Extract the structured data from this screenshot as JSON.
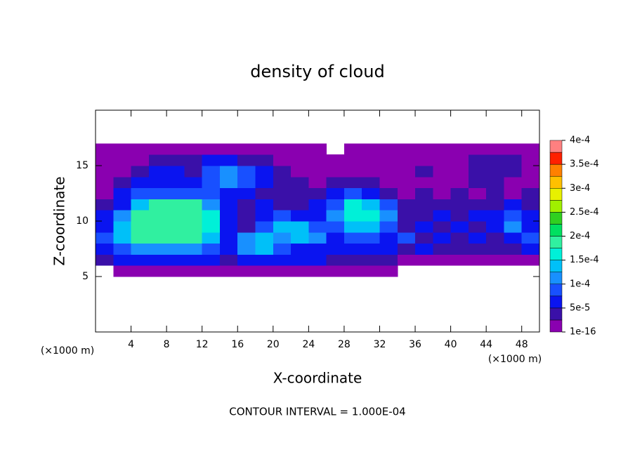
{
  "chart_data": {
    "type": "contour",
    "title": "density of cloud",
    "x_label": "X-coordinate",
    "y_label": "Z-coordinate",
    "y_unit": "(×1000 m)",
    "x_unit": "(×1000 m)",
    "footer": "CONTOUR INTERVAL = 1.000E-04",
    "xlim": [
      0,
      50
    ],
    "ylim": [
      0,
      20
    ],
    "xticks": [
      4,
      8,
      12,
      16,
      20,
      24,
      28,
      32,
      36,
      40,
      44,
      48
    ],
    "yticks": [
      5,
      10,
      15
    ],
    "clim": [
      1e-16,
      0.0004
    ],
    "colorbar_ticks": [
      1e-16,
      {
        "value": 5e-05,
        "label": "5e-5"
      },
      {
        "value": 0.0001,
        "label": "1e-4"
      },
      {
        "value": 0.00015,
        "label": "1.5e-4"
      },
      {
        "value": 0.0002,
        "label": "2e-4"
      },
      {
        "value": 0.00025,
        "label": "2.5e-4"
      },
      {
        "value": 0.0003,
        "label": "3e-4"
      },
      {
        "value": 0.00035,
        "label": "3.5e-4"
      },
      {
        "value": 0.0004,
        "label": "4e-4"
      }
    ],
    "colors": [
      "#8a00b0",
      "#3a10a8",
      "#0a14f0",
      "#1850ff",
      "#1890ff",
      "#00c0f8",
      "#00f0d8",
      "#30f0a0",
      "#00e060",
      "#30d020",
      "#a0f000",
      "#e8f000",
      "#ffc000",
      "#ff8000",
      "#ff2000",
      "#ff8080"
    ],
    "x": [
      1,
      3,
      5,
      7,
      9,
      11,
      13,
      15,
      17,
      19,
      21,
      23,
      25,
      27,
      29,
      31,
      33,
      35,
      37,
      39,
      41,
      43,
      45,
      47,
      49
    ],
    "y": [
      0.5,
      1.5,
      2.5,
      3.5,
      4.5,
      5.5,
      6.5,
      7.5,
      8.5,
      9.5,
      10.5,
      11.5,
      12.5,
      13.5,
      14.5,
      15.5,
      16.5,
      17.5,
      18.5,
      19.5
    ],
    "z": [
      [
        null,
        null,
        null,
        null,
        null,
        null,
        null,
        null,
        null,
        null,
        null,
        null,
        null,
        null,
        null,
        null,
        null,
        null,
        null,
        null,
        null,
        null,
        null,
        null,
        null
      ],
      [
        null,
        null,
        null,
        null,
        null,
        null,
        null,
        null,
        null,
        null,
        null,
        null,
        null,
        null,
        null,
        null,
        null,
        null,
        null,
        null,
        null,
        null,
        null,
        null,
        null
      ],
      [
        null,
        null,
        null,
        null,
        null,
        null,
        null,
        null,
        null,
        null,
        null,
        null,
        null,
        null,
        null,
        null,
        null,
        null,
        null,
        null,
        null,
        null,
        null,
        null,
        null
      ],
      [
        null,
        null,
        null,
        null,
        null,
        null,
        null,
        null,
        null,
        null,
        null,
        null,
        null,
        null,
        null,
        null,
        null,
        null,
        null,
        null,
        null,
        null,
        null,
        null,
        null
      ],
      [
        null,
        null,
        null,
        null,
        null,
        null,
        null,
        null,
        null,
        null,
        null,
        null,
        null,
        null,
        null,
        null,
        null,
        null,
        null,
        null,
        null,
        null,
        null,
        null,
        null
      ],
      [
        null,
        1e-05,
        1e-05,
        1e-05,
        1e-05,
        1e-05,
        1e-05,
        1e-05,
        1e-05,
        1e-05,
        1e-05,
        1e-05,
        1e-05,
        1e-05,
        1e-05,
        1e-05,
        1e-05,
        null,
        null,
        null,
        null,
        null,
        null,
        null,
        null
      ],
      [
        3e-05,
        6e-05,
        6e-05,
        6e-05,
        6e-05,
        6e-05,
        6e-05,
        4e-05,
        6e-05,
        6e-05,
        6e-05,
        6e-05,
        6e-05,
        4e-05,
        4e-05,
        4e-05,
        4e-05,
        2e-05,
        1e-05,
        1e-05,
        1e-05,
        1e-05,
        1e-05,
        1e-05,
        1e-05
      ],
      [
        6e-05,
        9e-05,
        0.00011,
        0.00011,
        0.00011,
        0.00011,
        9e-05,
        6e-05,
        0.00011,
        0.00013,
        9e-05,
        6e-05,
        6e-05,
        6e-05,
        6e-05,
        6e-05,
        6e-05,
        4e-05,
        6e-05,
        4e-05,
        4e-05,
        4e-05,
        4e-05,
        4e-05,
        6e-05
      ],
      [
        9e-05,
        0.00014,
        0.00018,
        0.00018,
        0.00018,
        0.00018,
        0.00014,
        6e-05,
        0.00011,
        0.00013,
        0.00011,
        0.00014,
        0.00011,
        6e-05,
        9e-05,
        9e-05,
        6e-05,
        9e-05,
        4e-05,
        6e-05,
        4e-05,
        6e-05,
        4e-05,
        6e-05,
        9e-05
      ],
      [
        6e-05,
        0.00014,
        0.00019,
        0.00019,
        0.00019,
        0.00019,
        0.00016,
        6e-05,
        4e-05,
        9e-05,
        0.00013,
        0.00014,
        9e-05,
        9e-05,
        0.00014,
        0.00014,
        9e-05,
        4e-05,
        6e-05,
        4e-05,
        6e-05,
        4e-05,
        6e-05,
        0.00011,
        6e-05
      ],
      [
        6e-05,
        0.00011,
        0.00018,
        0.00019,
        0.00019,
        0.00019,
        0.00016,
        6e-05,
        4e-05,
        6e-05,
        9e-05,
        6e-05,
        6e-05,
        0.00011,
        0.00016,
        0.00016,
        0.00011,
        4e-05,
        4e-05,
        6e-05,
        4e-05,
        6e-05,
        6e-05,
        9e-05,
        6e-05
      ],
      [
        4e-05,
        6e-05,
        0.00014,
        0.00018,
        0.00018,
        0.00018,
        0.00011,
        6e-05,
        4e-05,
        6e-05,
        4e-05,
        4e-05,
        6e-05,
        9e-05,
        0.00016,
        0.00014,
        9e-05,
        4e-05,
        4e-05,
        4e-05,
        4e-05,
        4e-05,
        4e-05,
        6e-05,
        4e-05
      ],
      [
        2e-05,
        6e-05,
        9e-05,
        9e-05,
        9e-05,
        9e-05,
        9e-05,
        6e-05,
        6e-05,
        4e-05,
        4e-05,
        4e-05,
        4e-05,
        6e-05,
        9e-05,
        6e-05,
        4e-05,
        2e-05,
        4e-05,
        2e-05,
        4e-05,
        2e-05,
        4e-05,
        2e-05,
        4e-05
      ],
      [
        2e-05,
        4e-05,
        6e-05,
        6e-05,
        6e-05,
        6e-05,
        9e-05,
        0.00011,
        9e-05,
        6e-05,
        4e-05,
        4e-05,
        2e-05,
        4e-05,
        4e-05,
        4e-05,
        2e-05,
        2e-05,
        2e-05,
        2e-05,
        2e-05,
        4e-05,
        4e-05,
        2e-05,
        2e-05
      ],
      [
        1e-05,
        2e-05,
        4e-05,
        6e-05,
        6e-05,
        4e-05,
        9e-05,
        0.00011,
        9e-05,
        6e-05,
        4e-05,
        2e-05,
        1e-05,
        2e-05,
        2e-05,
        2e-05,
        1e-05,
        2e-05,
        4e-05,
        2e-05,
        2e-05,
        4e-05,
        4e-05,
        4e-05,
        2e-05
      ],
      [
        1e-05,
        1e-05,
        2e-05,
        4e-05,
        4e-05,
        4e-05,
        6e-05,
        6e-05,
        4e-05,
        4e-05,
        2e-05,
        1e-05,
        1e-05,
        1e-05,
        1e-05,
        1e-05,
        1e-05,
        2e-05,
        2e-05,
        2e-05,
        2e-05,
        4e-05,
        4e-05,
        4e-05,
        2e-05
      ],
      [
        1e-05,
        1e-05,
        1e-05,
        1e-05,
        1e-05,
        1e-05,
        1e-05,
        1e-05,
        1e-05,
        1e-05,
        1e-05,
        1e-05,
        1e-05,
        null,
        1e-05,
        1e-05,
        1e-05,
        1e-05,
        1e-05,
        1e-05,
        1e-05,
        1e-05,
        1e-05,
        1e-05,
        1e-05
      ],
      [
        null,
        null,
        null,
        null,
        null,
        null,
        null,
        null,
        null,
        null,
        null,
        null,
        null,
        null,
        null,
        null,
        null,
        null,
        null,
        null,
        null,
        null,
        null,
        null,
        null
      ],
      [
        null,
        null,
        null,
        null,
        null,
        null,
        null,
        null,
        null,
        null,
        null,
        null,
        null,
        null,
        null,
        null,
        null,
        null,
        null,
        null,
        null,
        null,
        null,
        null,
        null
      ],
      [
        null,
        null,
        null,
        null,
        null,
        null,
        null,
        null,
        null,
        null,
        null,
        null,
        null,
        null,
        null,
        null,
        null,
        null,
        null,
        null,
        null,
        null,
        null,
        null,
        null
      ]
    ]
  }
}
